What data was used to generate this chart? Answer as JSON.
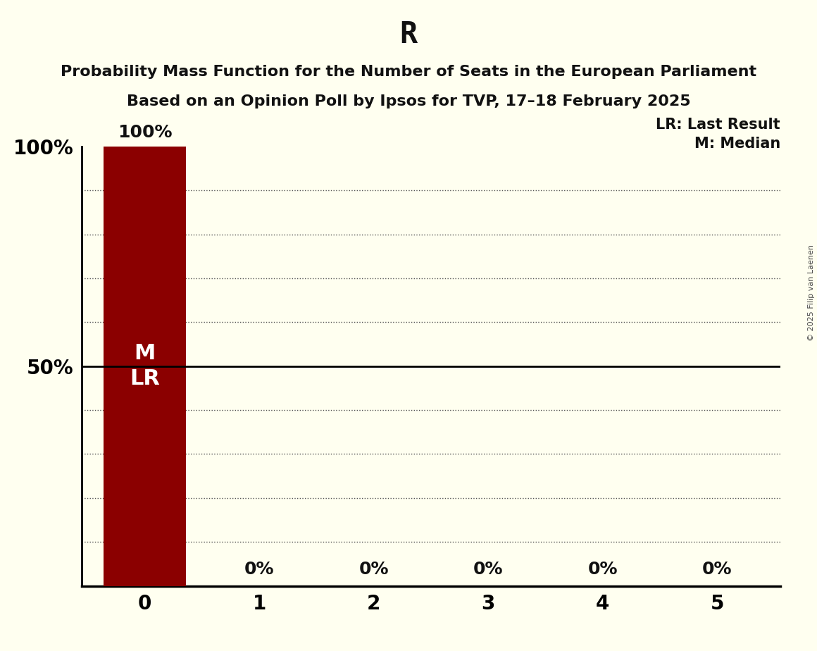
{
  "title": "R",
  "subtitle1": "Probability Mass Function for the Number of Seats in the European Parliament",
  "subtitle2": "Based on an Opinion Poll by Ipsos for TVP, 17–18 February 2025",
  "copyright": "© 2025 Filip van Laenen",
  "bar_color": "#8B0000",
  "background_color": "#FFFFF0",
  "seats": [
    0,
    1,
    2,
    3,
    4,
    5
  ],
  "probabilities": [
    1.0,
    0.0,
    0.0,
    0.0,
    0.0,
    0.0
  ],
  "median": 0,
  "last_result": 0,
  "ylim": [
    0,
    1.0
  ],
  "legend_lr": "LR: Last Result",
  "legend_m": "M: Median",
  "title_fontsize": 30,
  "subtitle_fontsize": 16,
  "axis_tick_fontsize": 20,
  "bar_label_fontsize": 18,
  "inside_label_fontsize": 22,
  "legend_fontsize": 15,
  "bar_width": 0.72
}
